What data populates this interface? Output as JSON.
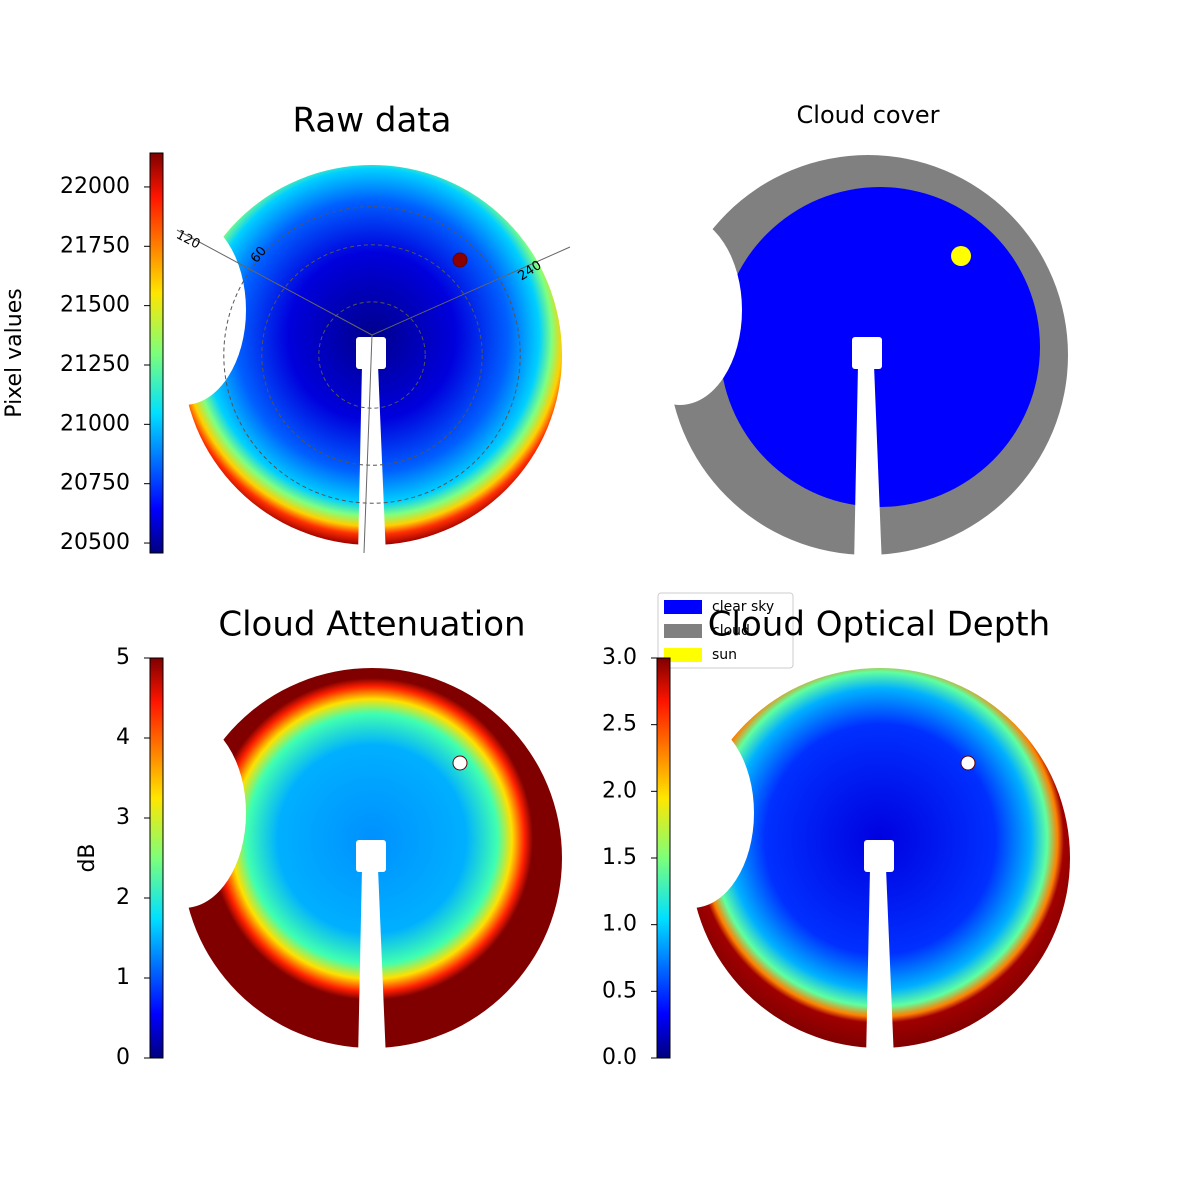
{
  "panels": [
    {
      "title": "Raw data",
      "colorbar": {
        "label": "Pixel values",
        "lim": [
          20458,
          22143
        ],
        "ticks": [
          20500,
          20750,
          21000,
          21250,
          21500,
          21750,
          22000
        ]
      },
      "polar_labels": [
        "120",
        "60",
        "240"
      ]
    },
    {
      "title": "Cloud cover",
      "legend": {
        "items": [
          {
            "label": "clear sky",
            "color": "#0000ff"
          },
          {
            "label": "cloud",
            "color": "#808080"
          },
          {
            "label": "sun",
            "color": "#ffff00"
          }
        ]
      }
    },
    {
      "title": "Cloud Attenuation",
      "colorbar": {
        "label": "dB",
        "lim": [
          0,
          5
        ],
        "ticks": [
          0,
          1,
          2,
          3,
          4,
          5
        ]
      }
    },
    {
      "title": "Cloud Optical Depth",
      "colorbar": {
        "lim": [
          0,
          3
        ],
        "ticks": [
          {
            "value": 0,
            "label": "0.0"
          },
          0.5,
          {
            "value": 1,
            "label": "1.0"
          },
          1.5,
          {
            "value": 2,
            "label": "2.0"
          },
          2.5,
          {
            "value": 3,
            "label": "3.0"
          }
        ]
      }
    }
  ]
}
